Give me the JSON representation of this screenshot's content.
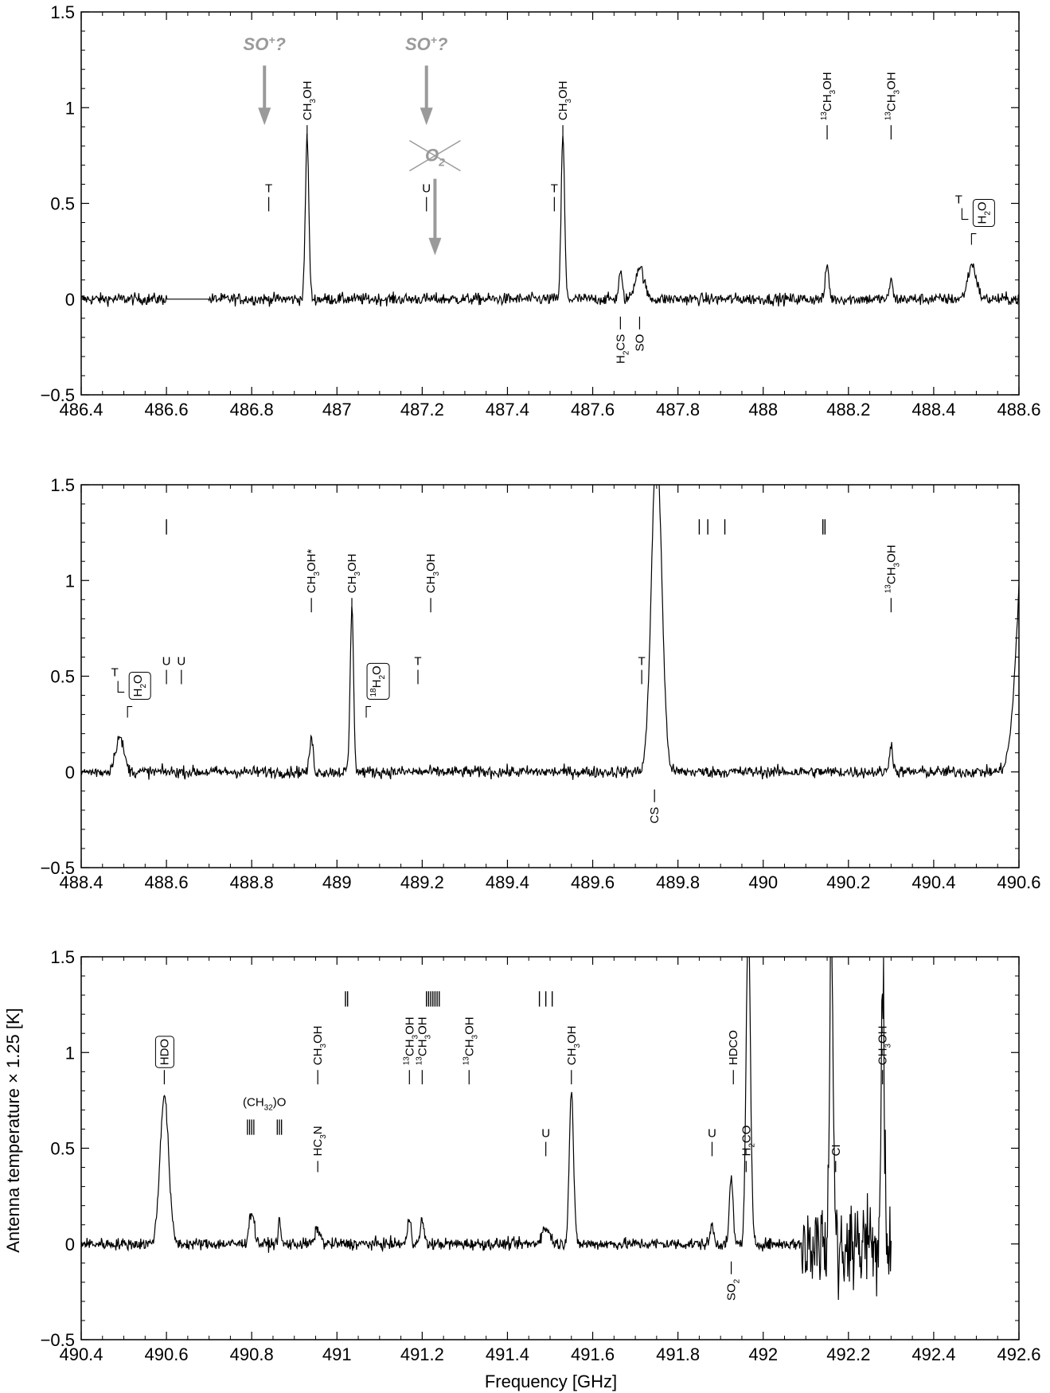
{
  "chart_data": [
    {
      "type": "line",
      "xlim": [
        486.4,
        488.6
      ],
      "ylim": [
        -0.5,
        1.5
      ],
      "xticks": [
        "486.4",
        "486.6",
        "486.8",
        "487",
        "487.2",
        "487.4",
        "487.6",
        "487.8",
        "488",
        "488.2",
        "488.4",
        "488.6"
      ],
      "yticks": [
        "1.5",
        "1",
        "0.5",
        "0",
        "−0.5"
      ],
      "gap": [
        486.6,
        486.7
      ],
      "peaks": [
        {
          "x": 486.93,
          "h": 0.85,
          "w": 0.004
        },
        {
          "x": 487.53,
          "h": 0.85,
          "w": 0.004
        },
        {
          "x": 487.665,
          "h": 0.14,
          "w": 0.004
        },
        {
          "x": 487.71,
          "h": 0.17,
          "w": 0.01
        },
        {
          "x": 488.15,
          "h": 0.18,
          "w": 0.004
        },
        {
          "x": 488.3,
          "h": 0.12,
          "w": 0.003
        },
        {
          "x": 488.49,
          "h": 0.18,
          "w": 0.01
        }
      ],
      "labels_above": [
        {
          "x": 486.93,
          "text": "CH",
          "sub": "3",
          "rest": "OH"
        },
        {
          "x": 487.53,
          "text": "CH",
          "sub": "3",
          "rest": "OH"
        },
        {
          "x": 488.15,
          "sup": "13",
          "text": "CH",
          "sub": "3",
          "rest": "OH"
        },
        {
          "x": 488.3,
          "sup": "13",
          "text": "CH",
          "sub": "3",
          "rest": "OH"
        }
      ],
      "labels_below": [
        {
          "x": 487.665,
          "text": "H",
          "sub": "2",
          "rest": "CS"
        },
        {
          "x": 487.71,
          "text": "SO"
        }
      ],
      "markers": [
        {
          "x": 486.84,
          "text": "T"
        },
        {
          "x": 487.21,
          "text": "U"
        },
        {
          "x": 487.51,
          "text": "T"
        }
      ],
      "boxed": [
        {
          "x": 488.47,
          "text": "H",
          "sub": "2",
          "rest": "O",
          "marker": "T"
        }
      ],
      "so_plus": [
        {
          "x": 486.83,
          "text": "SO",
          "sup": "+",
          "rest": "?"
        },
        {
          "x": 487.21,
          "text": "SO",
          "sup": "+",
          "rest": "?"
        }
      ],
      "o2": {
        "x": 487.23,
        "text": "O",
        "sub": "2"
      }
    },
    {
      "type": "line",
      "xlim": [
        488.4,
        490.6
      ],
      "ylim": [
        -0.5,
        1.5
      ],
      "xticks": [
        "488.4",
        "488.6",
        "488.8",
        "489",
        "489.2",
        "489.4",
        "489.6",
        "489.8",
        "490",
        "490.2",
        "490.4",
        "490.6"
      ],
      "yticks": [
        "1.5",
        "1",
        "0.5",
        "0",
        "−0.5"
      ],
      "peaks": [
        {
          "x": 488.49,
          "h": 0.18,
          "w": 0.01
        },
        {
          "x": 488.94,
          "h": 0.18,
          "w": 0.004
        },
        {
          "x": 489.035,
          "h": 0.85,
          "w": 0.004
        },
        {
          "x": 489.75,
          "h": 1.7,
          "w": 0.012
        },
        {
          "x": 490.3,
          "h": 0.15,
          "w": 0.004
        },
        {
          "x": 490.62,
          "h": 1.6,
          "w": 0.02
        }
      ],
      "labels_above": [
        {
          "x": 488.94,
          "text": "CH",
          "sub": "3",
          "rest": "OH*"
        },
        {
          "x": 489.035,
          "text": "CH",
          "sub": "3",
          "rest": "OH"
        },
        {
          "x": 489.22,
          "text": "CH",
          "sub": "3",
          "rest": "OH"
        },
        {
          "x": 490.3,
          "sup": "13",
          "text": "CH",
          "sub": "3",
          "rest": "OH"
        }
      ],
      "labels_below": [
        {
          "x": 489.745,
          "text": "CS"
        }
      ],
      "markers": [
        {
          "x": 488.6,
          "text": "U"
        },
        {
          "x": 488.635,
          "text": "U"
        },
        {
          "x": 489.19,
          "text": "T"
        },
        {
          "x": 489.715,
          "text": "T"
        }
      ],
      "boxed": [
        {
          "x": 488.49,
          "text": "H",
          "sub": "2",
          "rest": "O",
          "marker": "T"
        },
        {
          "x": 489.05,
          "text": "H",
          "sup": "18",
          "sub2": "2",
          "rest": "O"
        }
      ],
      "top_ticks": [
        488.6,
        489.85,
        489.87,
        489.91,
        490.14,
        490.145
      ]
    },
    {
      "type": "line",
      "xlim": [
        490.4,
        492.6
      ],
      "ylim": [
        -0.5,
        1.5
      ],
      "xticks": [
        "490.4",
        "490.6",
        "490.8",
        "491",
        "491.2",
        "491.4",
        "491.6",
        "491.8",
        "492",
        "492.2",
        "492.4",
        "492.6"
      ],
      "yticks": [
        "1.5",
        "1",
        "0.5",
        "0",
        "−0.5"
      ],
      "xlabel": "Frequency [GHz]",
      "peaks": [
        {
          "x": 490.595,
          "h": 0.78,
          "w": 0.01
        },
        {
          "x": 490.8,
          "h": 0.17,
          "w": 0.006
        },
        {
          "x": 490.865,
          "h": 0.12,
          "w": 0.003
        },
        {
          "x": 490.955,
          "h": 0.08,
          "w": 0.006
        },
        {
          "x": 491.17,
          "h": 0.14,
          "w": 0.004
        },
        {
          "x": 491.2,
          "h": 0.13,
          "w": 0.004
        },
        {
          "x": 491.49,
          "h": 0.08,
          "w": 0.01
        },
        {
          "x": 491.55,
          "h": 0.8,
          "w": 0.005
        },
        {
          "x": 491.88,
          "h": 0.1,
          "w": 0.004
        },
        {
          "x": 491.925,
          "h": 0.36,
          "w": 0.004
        },
        {
          "x": 491.965,
          "h": 1.7,
          "w": 0.005
        },
        {
          "x": 492.16,
          "h": 1.7,
          "w": 0.004
        },
        {
          "x": 492.28,
          "h": 1.42,
          "w": 0.004
        }
      ],
      "noisy_region": [
        492.09,
        492.3
      ],
      "end_x": 492.3,
      "labels_above": [
        {
          "x": 490.595,
          "text": "HDO",
          "boxed": true
        },
        {
          "x": 490.955,
          "text": "CH",
          "sub": "3",
          "rest": "OH"
        },
        {
          "x": 491.17,
          "sup": "13",
          "text": "CH",
          "sub": "3",
          "rest": "OH"
        },
        {
          "x": 491.2,
          "sup": "13",
          "text": "CH",
          "sub": "3",
          "rest": "OH"
        },
        {
          "x": 491.31,
          "sup": "13",
          "text": "CH",
          "sub": "3",
          "rest": "OH"
        },
        {
          "x": 491.55,
          "text": "CH",
          "sub": "3",
          "rest": "OH"
        },
        {
          "x": 491.93,
          "text": "HDCO"
        },
        {
          "x": 492.28,
          "text": "CH",
          "sub": "3",
          "rest": "OH"
        }
      ],
      "labels_below": [
        {
          "x": 491.925,
          "text": "SO",
          "sub": "2"
        }
      ],
      "markers": [
        {
          "x": 491.49,
          "text": "U"
        },
        {
          "x": 491.88,
          "text": "U"
        }
      ],
      "group_labels": [
        {
          "x": 490.83,
          "text": "(CH",
          "sub": "3",
          "rest": ")",
          "sub2": "2",
          "rest2": "O"
        }
      ],
      "side_labels": [
        {
          "x": 490.955,
          "text": "HC",
          "sub": "3",
          "rest": "N"
        },
        {
          "x": 491.96,
          "text": "H",
          "sub": "2",
          "rest": "CO"
        },
        {
          "x": 492.17,
          "text": "CI"
        }
      ],
      "top_ticks": [
        491.02,
        491.025,
        491.21,
        491.215,
        491.22,
        491.225,
        491.23,
        491.235,
        491.24,
        491.475,
        491.49,
        491.505
      ]
    }
  ],
  "axis": {
    "ylabel": "Antenna temperature × 1.25  [K]"
  }
}
